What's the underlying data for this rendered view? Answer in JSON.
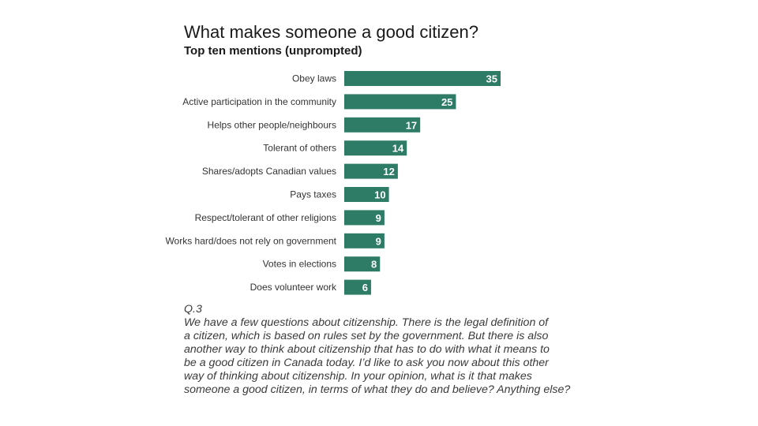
{
  "chart_data": {
    "type": "bar",
    "orientation": "horizontal",
    "title": "What makes someone a good citizen?",
    "subtitle": "Top ten mentions (unprompted)",
    "categories": [
      "Obey laws",
      "Active participation in the community",
      "Helps other people/neighbours",
      "Tolerant of others",
      "Shares/adopts Canadian values",
      "Pays taxes",
      "Respect/tolerant of other religions",
      "Works hard/does not rely on government",
      "Votes in elections",
      "Does volunteer work"
    ],
    "values": [
      35,
      25,
      17,
      14,
      12,
      10,
      9,
      9,
      8,
      6
    ],
    "xlim": [
      0,
      35
    ],
    "bar_color": "#2e7b66",
    "value_label_color": "#ffffff"
  },
  "question": {
    "number": "Q.3",
    "lines": [
      "We have a few questions about citizenship. There is the legal definition of",
      "a citizen, which is based on rules set by the government. But there is also",
      "another way to think about citizenship that has to do with what it means to",
      "be a good citizen in Canada today. I’d like to ask you now about this other",
      "way of thinking about citizenship. In your opinion, what is it that makes",
      "someone a good citizen, in terms of what they do and believe? Anything else?"
    ]
  }
}
